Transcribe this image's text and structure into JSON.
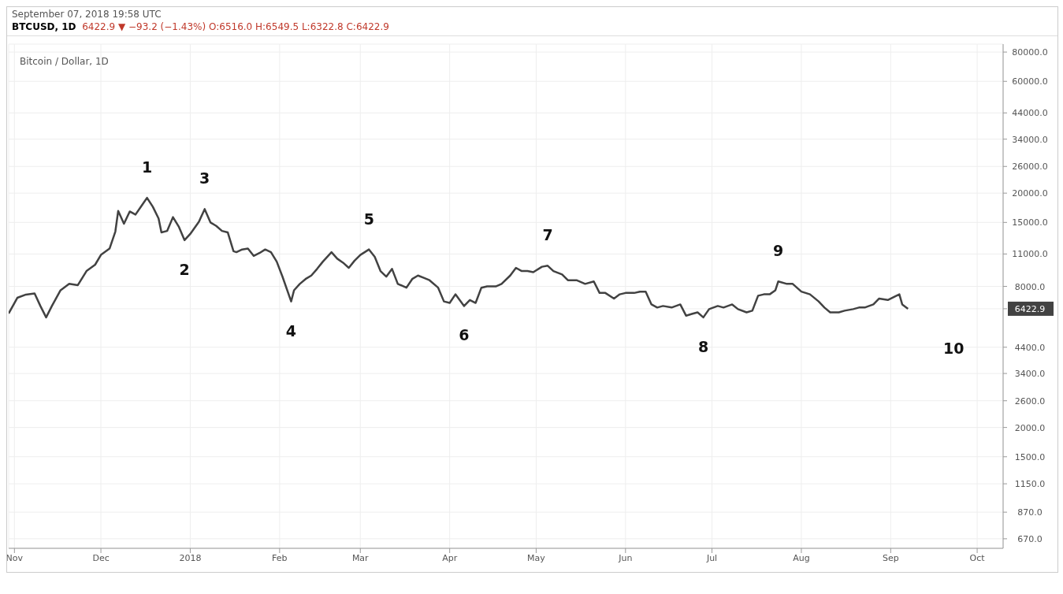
{
  "chart_data": {
    "type": "line",
    "title": "BTCUSD, 1D",
    "subtitle": "6422.9 ▼ −93.2 (−1.43%) O:6516.0 H:6549.5 L:6322.8 C:6422.9",
    "annotations": [
      "September 07, 2018 19:58 UTC",
      "Bitcoin / Dollar, 1D",
      "10",
      {
        "text": "1",
        "x": "2017-12-17",
        "y": 19100
      },
      {
        "text": "2",
        "x": "2017-12-30",
        "y": 12600
      },
      {
        "text": "3",
        "x": "2018-01-06",
        "y": 17100
      },
      {
        "text": "4",
        "x": "2018-02-05",
        "y": 6900
      },
      {
        "text": "5",
        "x": "2018-03-04",
        "y": 11500
      },
      {
        "text": "6",
        "x": "2018-04-06",
        "y": 6600
      },
      {
        "text": "7",
        "x": "2018-05-05",
        "y": 9800
      },
      {
        "text": "8",
        "x": "2018-06-28",
        "y": 5900
      },
      {
        "text": "9",
        "x": "2018-07-24",
        "y": 8400
      }
    ],
    "x": [
      "2017-10-30",
      "2017-11-02",
      "2017-11-05",
      "2017-11-08",
      "2017-11-10",
      "2017-11-12",
      "2017-11-14",
      "2017-11-17",
      "2017-11-20",
      "2017-11-23",
      "2017-11-26",
      "2017-11-29",
      "2017-12-01",
      "2017-12-04",
      "2017-12-06",
      "2017-12-07",
      "2017-12-09",
      "2017-12-11",
      "2017-12-13",
      "2017-12-15",
      "2017-12-17",
      "2017-12-19",
      "2017-12-21",
      "2017-12-22",
      "2017-12-24",
      "2017-12-26",
      "2017-12-28",
      "2017-12-30",
      "2018-01-01",
      "2018-01-04",
      "2018-01-06",
      "2018-01-08",
      "2018-01-10",
      "2018-01-12",
      "2018-01-14",
      "2018-01-16",
      "2018-01-17",
      "2018-01-19",
      "2018-01-21",
      "2018-01-23",
      "2018-01-25",
      "2018-01-27",
      "2018-01-29",
      "2018-01-31",
      "2018-02-02",
      "2018-02-05",
      "2018-02-06",
      "2018-02-08",
      "2018-02-10",
      "2018-02-12",
      "2018-02-14",
      "2018-02-16",
      "2018-02-19",
      "2018-02-21",
      "2018-02-23",
      "2018-02-25",
      "2018-02-27",
      "2018-03-01",
      "2018-03-04",
      "2018-03-06",
      "2018-03-08",
      "2018-03-10",
      "2018-03-12",
      "2018-03-14",
      "2018-03-17",
      "2018-03-19",
      "2018-03-21",
      "2018-03-23",
      "2018-03-25",
      "2018-03-28",
      "2018-03-30",
      "2018-04-01",
      "2018-04-03",
      "2018-04-06",
      "2018-04-08",
      "2018-04-10",
      "2018-04-12",
      "2018-04-14",
      "2018-04-17",
      "2018-04-19",
      "2018-04-22",
      "2018-04-24",
      "2018-04-26",
      "2018-04-28",
      "2018-04-30",
      "2018-05-03",
      "2018-05-05",
      "2018-05-07",
      "2018-05-10",
      "2018-05-12",
      "2018-05-15",
      "2018-05-18",
      "2018-05-21",
      "2018-05-23",
      "2018-05-25",
      "2018-05-28",
      "2018-05-30",
      "2018-06-01",
      "2018-06-04",
      "2018-06-06",
      "2018-06-08",
      "2018-06-10",
      "2018-06-12",
      "2018-06-14",
      "2018-06-17",
      "2018-06-20",
      "2018-06-22",
      "2018-06-24",
      "2018-06-26",
      "2018-06-28",
      "2018-06-30",
      "2018-07-03",
      "2018-07-05",
      "2018-07-08",
      "2018-07-10",
      "2018-07-13",
      "2018-07-15",
      "2018-07-17",
      "2018-07-19",
      "2018-07-21",
      "2018-07-23",
      "2018-07-24",
      "2018-07-27",
      "2018-07-29",
      "2018-08-01",
      "2018-08-04",
      "2018-08-07",
      "2018-08-09",
      "2018-08-11",
      "2018-08-14",
      "2018-08-16",
      "2018-08-19",
      "2018-08-21",
      "2018-08-23",
      "2018-08-26",
      "2018-08-28",
      "2018-08-31",
      "2018-09-03",
      "2018-09-04",
      "2018-09-05",
      "2018-09-07"
    ],
    "series": [
      {
        "color": "#424242",
        "values": [
          6130,
          7150,
          7380,
          7460,
          6600,
          5900,
          6600,
          7700,
          8200,
          8100,
          9300,
          9900,
          10900,
          11600,
          13700,
          16800,
          14800,
          16700,
          16200,
          17600,
          19100,
          17500,
          15600,
          13600,
          13800,
          15800,
          14400,
          12600,
          13400,
          15100,
          17100,
          15000,
          14500,
          13800,
          13600,
          11300,
          11200,
          11500,
          11600,
          10800,
          11100,
          11500,
          11200,
          10200,
          8800,
          6900,
          7700,
          8200,
          8600,
          8900,
          9500,
          10200,
          11200,
          10500,
          10100,
          9600,
          10300,
          10900,
          11500,
          10700,
          9300,
          8800,
          9500,
          8200,
          7900,
          8600,
          8900,
          8700,
          8500,
          7900,
          6900,
          6800,
          7400,
          6600,
          7000,
          6800,
          7900,
          8000,
          8000,
          8200,
          8900,
          9600,
          9300,
          9300,
          9200,
          9700,
          9800,
          9300,
          9000,
          8500,
          8500,
          8200,
          8400,
          7500,
          7500,
          7100,
          7400,
          7500,
          7500,
          7600,
          7600,
          6700,
          6500,
          6600,
          6500,
          6700,
          6000,
          6100,
          6200,
          5900,
          6400,
          6600,
          6500,
          6700,
          6400,
          6200,
          6300,
          7300,
          7400,
          7400,
          7700,
          8400,
          8200,
          8200,
          7600,
          7400,
          6900,
          6500,
          6200,
          6200,
          6300,
          6400,
          6500,
          6500,
          6700,
          7100,
          7000,
          7300,
          7400,
          6700,
          6422.9
        ]
      }
    ],
    "xlim": [
      "2017-10-30",
      "2018-10-10"
    ],
    "xticks": [
      {
        "value": "2017-11-01",
        "label": "Nov"
      },
      {
        "value": "2017-12-01",
        "label": "Dec"
      },
      {
        "value": "2018-01-01",
        "label": "2018"
      },
      {
        "value": "2018-02-01",
        "label": "Feb"
      },
      {
        "value": "2018-03-01",
        "label": "Mar"
      },
      {
        "value": "2018-04-01",
        "label": "Apr"
      },
      {
        "value": "2018-05-01",
        "label": "May"
      },
      {
        "value": "2018-06-01",
        "label": "Jun"
      },
      {
        "value": "2018-07-01",
        "label": "Jul"
      },
      {
        "value": "2018-08-01",
        "label": "Aug"
      },
      {
        "value": "2018-09-01",
        "label": "Sep"
      },
      {
        "value": "2018-10-01",
        "label": "Oct"
      }
    ],
    "ylim": [
      610,
      86500
    ],
    "log": true,
    "yticks": [
      {
        "value": 670,
        "label": "670.0"
      },
      {
        "value": 870,
        "label": "870.0"
      },
      {
        "value": 1150,
        "label": "1150.0"
      },
      {
        "value": 1500,
        "label": "1500.0"
      },
      {
        "value": 2000,
        "label": "2000.0"
      },
      {
        "value": 2600,
        "label": "2600.0"
      },
      {
        "value": 3400,
        "label": "3400.0"
      },
      {
        "value": 4400,
        "label": "4400.0"
      },
      {
        "value": 6422.9,
        "label": "6422.9"
      },
      {
        "value": 8000,
        "label": "8000.0"
      },
      {
        "value": 11000,
        "label": "11000.0"
      },
      {
        "value": 15000,
        "label": "15000.0"
      },
      {
        "value": 20000,
        "label": "20000.0"
      },
      {
        "value": 26000,
        "label": "26000.0"
      },
      {
        "value": 34000,
        "label": "34000.0"
      },
      {
        "value": 44000,
        "label": "44000.0"
      },
      {
        "value": 60000,
        "label": "60000.0"
      },
      {
        "value": 80000,
        "label": "80000.0"
      }
    ],
    "grid": true,
    "marker": "none",
    "line_style": "solid"
  }
}
